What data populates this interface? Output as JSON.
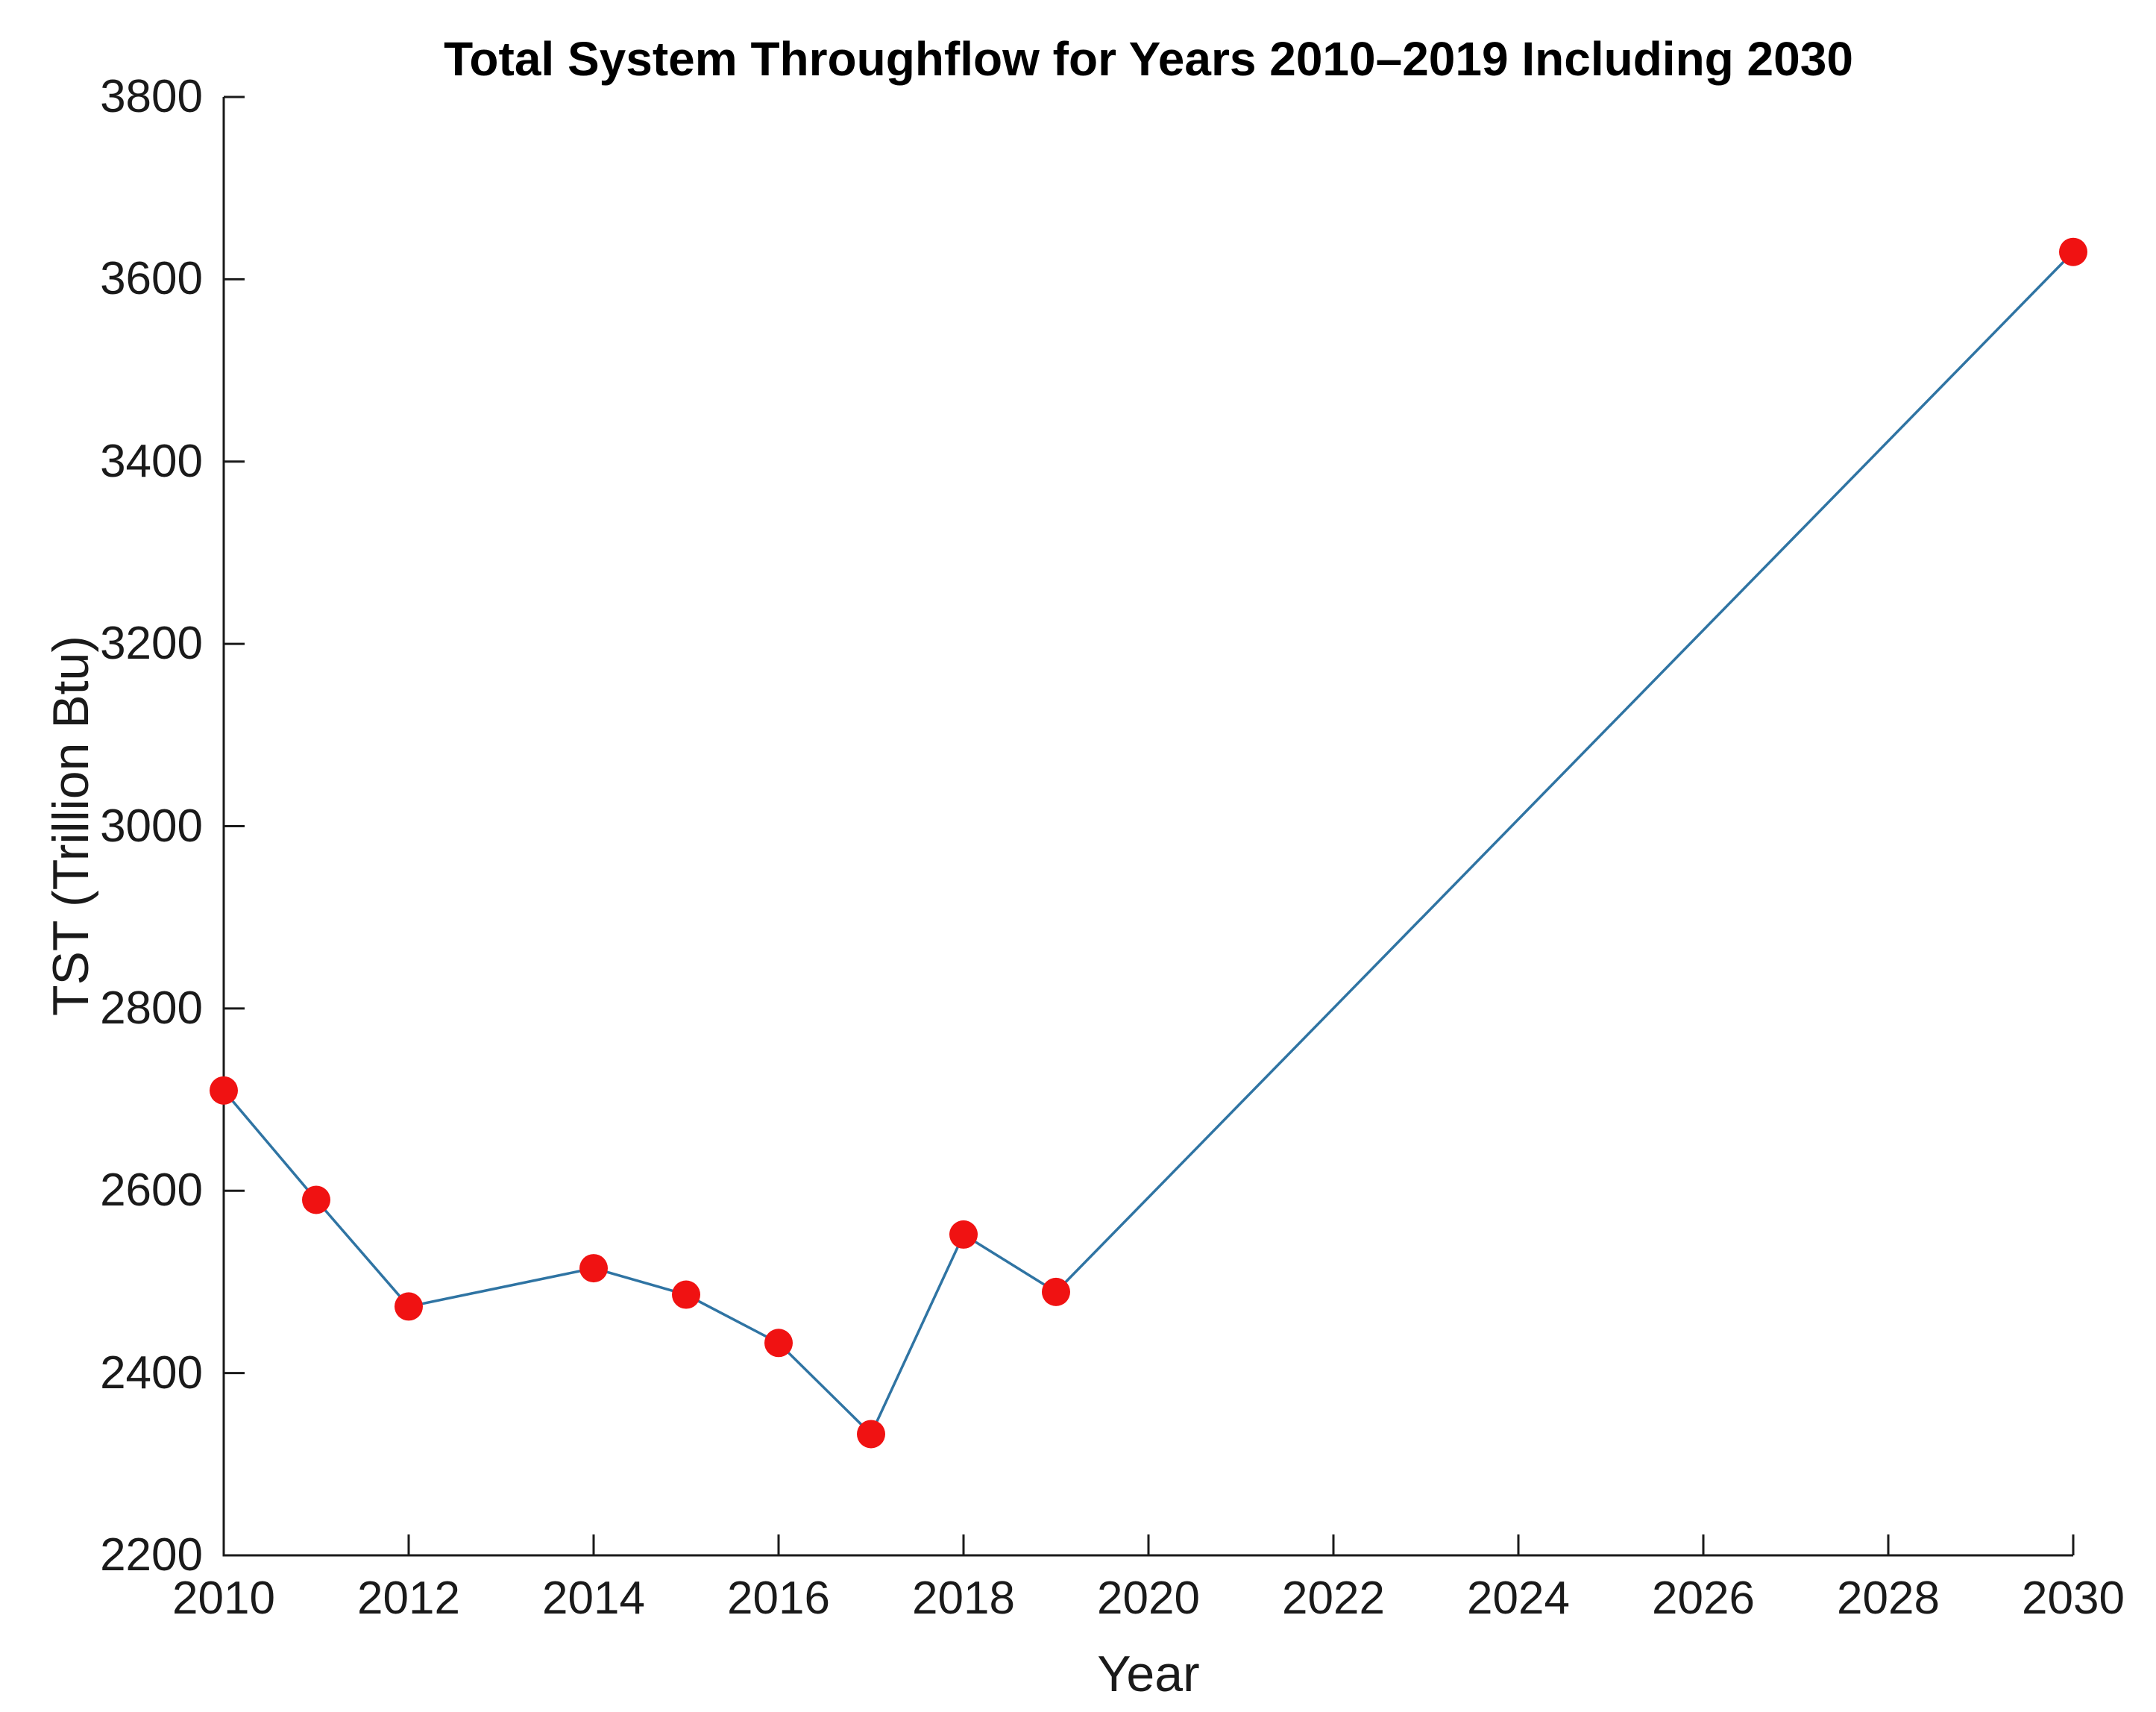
{
  "chart_data": {
    "type": "line",
    "title": "Total System Throughflow for Years 2010–2019 Including 2030",
    "xlabel": "Year",
    "ylabel": "TST (Trillion Btu)",
    "x": [
      2010,
      2011,
      2012,
      2014,
      2015,
      2016,
      2017,
      2018,
      2019,
      2030
    ],
    "y": [
      2710,
      2590,
      2473,
      2515,
      2486,
      2433,
      2333,
      2552,
      2489,
      3630
    ],
    "xlim": [
      2010,
      2030
    ],
    "ylim": [
      2200,
      3800
    ],
    "x_ticks": [
      2010,
      2012,
      2014,
      2016,
      2018,
      2020,
      2022,
      2024,
      2026,
      2028,
      2030
    ],
    "y_ticks": [
      2200,
      2400,
      2600,
      2800,
      3000,
      3200,
      3400,
      3600,
      3800
    ],
    "grid": false,
    "legend": null,
    "line_color": "#2f74a3",
    "marker": "circle",
    "marker_color": "#f01212",
    "axis_color": "#1a1a1a"
  }
}
